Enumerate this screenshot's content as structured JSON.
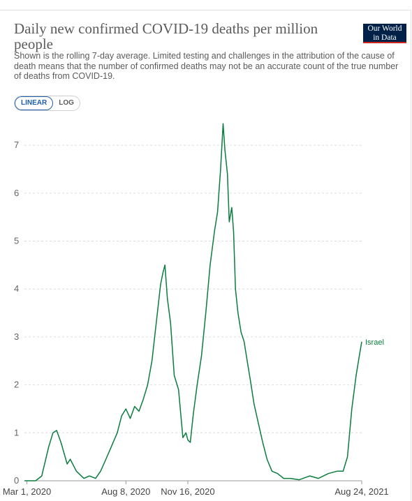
{
  "header": {
    "title": "Daily new confirmed COVID-19 deaths per million people",
    "subtitle": "Shown is the rolling 7-day average. Limited testing and challenges in the attribution of the cause of death means that the number of confirmed deaths may not be an accurate count of the true number of deaths from COVID-19.",
    "logo_line1": "Our World",
    "logo_line2": "in Data",
    "logo_color": "#002147",
    "logo_accent": "#ce261e"
  },
  "controls": {
    "linear_label": "LINEAR",
    "log_label": "LOG",
    "selected": "linear"
  },
  "chart_data": {
    "type": "line",
    "title": "Daily new confirmed COVID-19 deaths per million people",
    "xlabel": "",
    "ylabel": "",
    "ylim": [
      0,
      7.5
    ],
    "y_ticks": [
      "0",
      "1",
      "2",
      "3",
      "4",
      "5",
      "6",
      "7"
    ],
    "x_tick_labels": [
      "Mar 1, 2020",
      "Aug 8, 2020",
      "Nov 16, 2020",
      "Aug 24, 2021"
    ],
    "x_tick_dates": [
      "2020-03-01",
      "2020-08-08",
      "2020-11-16",
      "2021-08-24"
    ],
    "grid": true,
    "series": [
      {
        "name": "Israel",
        "color": "#0b7d3e",
        "x": [
          "2020-02-26",
          "2020-03-15",
          "2020-03-25",
          "2020-04-05",
          "2020-04-12",
          "2020-04-18",
          "2020-04-25",
          "2020-05-05",
          "2020-05-10",
          "2020-05-20",
          "2020-06-01",
          "2020-06-10",
          "2020-06-20",
          "2020-06-28",
          "2020-07-05",
          "2020-07-15",
          "2020-07-25",
          "2020-08-01",
          "2020-08-08",
          "2020-08-15",
          "2020-08-22",
          "2020-08-29",
          "2020-09-05",
          "2020-09-12",
          "2020-09-19",
          "2020-09-26",
          "2020-10-03",
          "2020-10-07",
          "2020-10-10",
          "2020-10-14",
          "2020-10-19",
          "2020-10-25",
          "2020-11-01",
          "2020-11-08",
          "2020-11-13",
          "2020-11-16",
          "2020-11-20",
          "2020-11-25",
          "2020-12-01",
          "2020-12-08",
          "2020-12-15",
          "2020-12-22",
          "2020-12-29",
          "2021-01-03",
          "2021-01-08",
          "2021-01-12",
          "2021-01-15",
          "2021-01-19",
          "2021-01-22",
          "2021-01-26",
          "2021-01-29",
          "2021-02-01",
          "2021-02-05",
          "2021-02-10",
          "2021-02-15",
          "2021-02-20",
          "2021-02-25",
          "2021-03-03",
          "2021-03-10",
          "2021-03-17",
          "2021-03-24",
          "2021-04-01",
          "2021-04-10",
          "2021-04-20",
          "2021-05-01",
          "2021-05-15",
          "2021-06-01",
          "2021-06-15",
          "2021-07-01",
          "2021-07-15",
          "2021-07-25",
          "2021-08-01",
          "2021-08-08",
          "2021-08-15",
          "2021-08-20",
          "2021-08-24"
        ],
        "values": [
          0,
          0,
          0.1,
          0.7,
          1.0,
          1.05,
          0.8,
          0.35,
          0.45,
          0.2,
          0.05,
          0.1,
          0.05,
          0.2,
          0.4,
          0.7,
          1.0,
          1.35,
          1.5,
          1.3,
          1.55,
          1.45,
          1.7,
          2.0,
          2.5,
          3.3,
          4.1,
          4.35,
          4.5,
          3.8,
          3.3,
          2.2,
          1.9,
          0.9,
          1.0,
          0.85,
          0.8,
          1.4,
          2.0,
          2.6,
          3.5,
          4.5,
          5.2,
          5.6,
          6.5,
          7.45,
          6.9,
          6.4,
          5.4,
          5.7,
          5.2,
          4.0,
          3.5,
          3.1,
          2.9,
          2.5,
          2.1,
          1.6,
          1.2,
          0.8,
          0.45,
          0.2,
          0.15,
          0.05,
          0.05,
          0.02,
          0.1,
          0.05,
          0.15,
          0.2,
          0.2,
          0.5,
          1.5,
          2.2,
          2.6,
          2.9
        ]
      }
    ]
  }
}
